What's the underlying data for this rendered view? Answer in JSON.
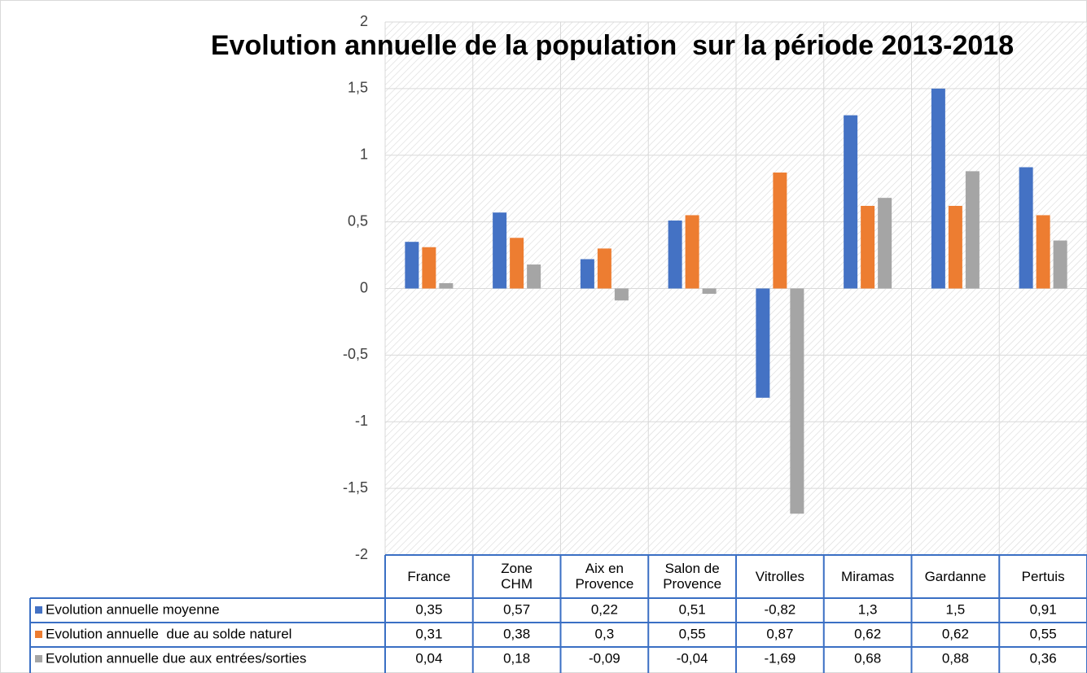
{
  "chart_data": {
    "type": "bar",
    "title": "Evolution annuelle de la population  sur la période 2013-2018",
    "categories": [
      "France",
      "Zone\nCHM",
      "Aix en\nProvence",
      "Salon de\nProvence",
      "Vitrolles",
      "Miramas",
      "Gardanne",
      "Pertuis"
    ],
    "series": [
      {
        "name": "Evolution annuelle moyenne",
        "color": "#4472c4",
        "values": [
          0.35,
          0.57,
          0.22,
          0.51,
          -0.82,
          1.3,
          1.5,
          0.91
        ],
        "value_labels": [
          "0,35",
          "0,57",
          "0,22",
          "0,51",
          "-0,82",
          "1,3",
          "1,5",
          "0,91"
        ]
      },
      {
        "name": "Evolution annuelle  due au solde naturel",
        "color": "#ed7d31",
        "values": [
          0.31,
          0.38,
          0.3,
          0.55,
          0.87,
          0.62,
          0.62,
          0.55
        ],
        "value_labels": [
          "0,31",
          "0,38",
          "0,3",
          "0,55",
          "0,87",
          "0,62",
          "0,62",
          "0,55"
        ]
      },
      {
        "name": "Evolution annuelle due aux entrées/sorties",
        "color": "#a5a5a5",
        "values": [
          0.04,
          0.18,
          -0.09,
          -0.04,
          -1.69,
          0.68,
          0.88,
          0.36
        ],
        "value_labels": [
          "0,04",
          "0,18",
          "-0,09",
          "-0,04",
          "-1,69",
          "0,68",
          "0,88",
          "0,36"
        ]
      }
    ],
    "ylim": [
      -2,
      2
    ],
    "yticks": [
      -2,
      {
        "value": -1.5,
        "label": "-1,5"
      },
      -1,
      {
        "value": -0.5,
        "label": "-0,5"
      },
      0,
      {
        "value": 0.5,
        "label": "0,5"
      },
      1,
      {
        "value": 1.5,
        "label": "1,5"
      },
      2
    ],
    "grid": true,
    "data_table": true
  }
}
